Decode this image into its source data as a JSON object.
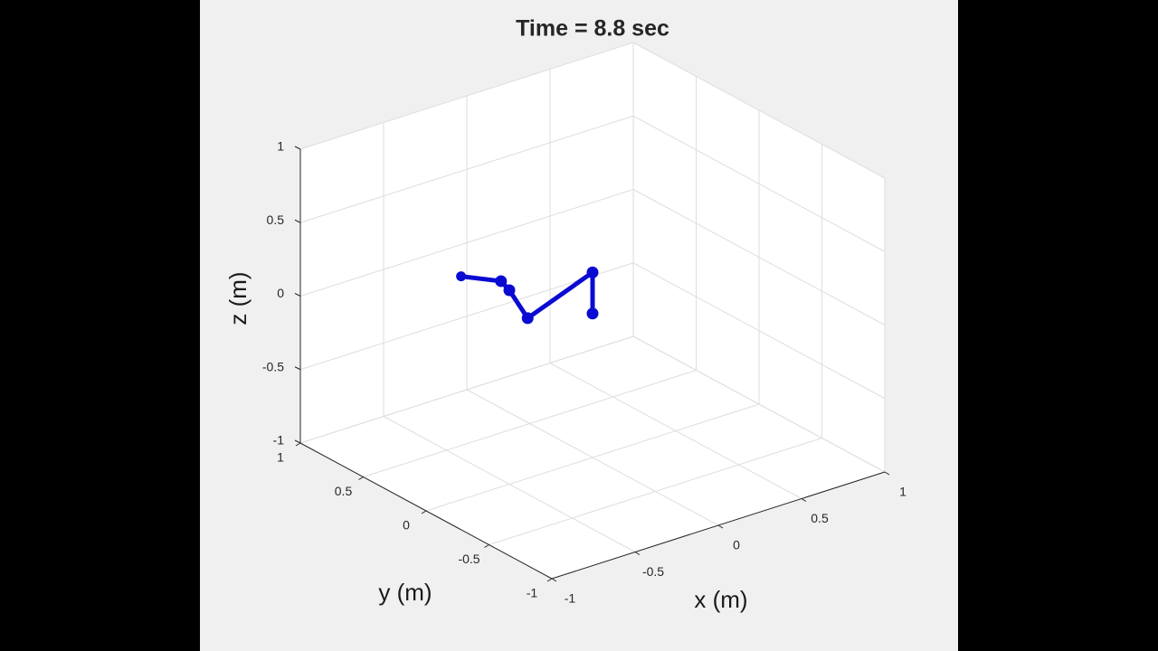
{
  "chart_data": {
    "type": "line3d",
    "title": "Time = 8.8 sec",
    "xlabel": "x (m)",
    "ylabel": "y (m)",
    "zlabel": "z (m)",
    "x": [
      -0.79,
      -0.55,
      -0.5,
      -0.39,
      0,
      0
    ],
    "y": [
      0,
      0,
      0,
      0,
      0,
      0
    ],
    "z": [
      0.52,
      0.4,
      0.32,
      0.09,
      0.26,
      -0.02
    ],
    "color": "#0a0ad2",
    "xlim": [
      -1,
      1
    ],
    "ylim": [
      -1,
      1
    ],
    "zlim": [
      -1,
      1
    ],
    "xticks": [
      -1,
      -0.5,
      0,
      0.5,
      1
    ],
    "yticks": [
      -1,
      -0.5,
      0,
      0.5,
      1
    ],
    "zticks": [
      -1,
      -0.5,
      0,
      0.5,
      1
    ],
    "grid": true
  }
}
